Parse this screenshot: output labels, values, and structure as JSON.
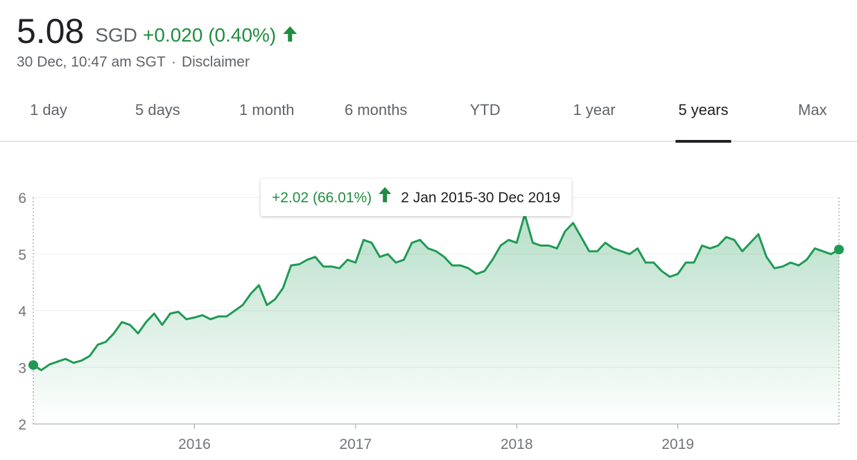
{
  "header": {
    "price": "5.08",
    "currency": "SGD",
    "change": "+0.020 (0.40%)",
    "timestamp": "30 Dec, 10:47 am SGT",
    "separator": "·",
    "disclaimer": "Disclaimer"
  },
  "tabs": [
    "1 day",
    "5 days",
    "1 month",
    "6 months",
    "YTD",
    "1 year",
    "5 years",
    "Max"
  ],
  "active_tab": 6,
  "chart_data": {
    "type": "line",
    "tooltip": {
      "change": "+2.02 (66.01%)",
      "range": "2 Jan 2015-30 Dec 2019"
    },
    "color": "#1f9a55",
    "grid": true,
    "xlim": [
      2015,
      2020
    ],
    "xticks": [
      2016,
      2017,
      2018,
      2019
    ],
    "ylim": [
      2,
      6
    ],
    "yticks": [
      2,
      3,
      4,
      5,
      6
    ],
    "x": [
      2015,
      2015.05,
      2015.1,
      2015.15,
      2015.2,
      2015.25,
      2015.3,
      2015.35,
      2015.4,
      2015.45,
      2015.5,
      2015.55,
      2015.6,
      2015.65,
      2015.7,
      2015.75,
      2015.8,
      2015.85,
      2015.9,
      2015.95,
      2016,
      2016.05,
      2016.1,
      2016.15,
      2016.2,
      2016.25,
      2016.3,
      2016.35,
      2016.4,
      2016.45,
      2016.5,
      2016.55,
      2016.6,
      2016.65,
      2016.7,
      2016.75,
      2016.8,
      2016.85,
      2016.9,
      2016.95,
      2017,
      2017.05,
      2017.1,
      2017.15,
      2017.2,
      2017.25,
      2017.3,
      2017.35,
      2017.4,
      2017.45,
      2017.5,
      2017.55,
      2017.6,
      2017.65,
      2017.7,
      2017.75,
      2017.8,
      2017.85,
      2017.9,
      2017.95,
      2018,
      2018.05,
      2018.1,
      2018.15,
      2018.2,
      2018.25,
      2018.3,
      2018.35,
      2018.4,
      2018.45,
      2018.5,
      2018.55,
      2018.6,
      2018.65,
      2018.7,
      2018.75,
      2018.8,
      2018.85,
      2018.9,
      2018.95,
      2019,
      2019.05,
      2019.1,
      2019.15,
      2019.2,
      2019.25,
      2019.3,
      2019.35,
      2019.4,
      2019.45,
      2019.5,
      2019.55,
      2019.6,
      2019.65,
      2019.7,
      2019.75,
      2019.8,
      2019.85,
      2019.9,
      2019.95,
      2020
    ],
    "values": [
      3.04,
      2.95,
      3.05,
      3.1,
      3.15,
      3.08,
      3.12,
      3.2,
      3.4,
      3.45,
      3.6,
      3.8,
      3.75,
      3.6,
      3.8,
      3.95,
      3.75,
      3.95,
      3.98,
      3.85,
      3.88,
      3.92,
      3.85,
      3.9,
      3.9,
      4.0,
      4.1,
      4.3,
      4.45,
      4.1,
      4.2,
      4.4,
      4.8,
      4.82,
      4.9,
      4.95,
      4.78,
      4.78,
      4.75,
      4.9,
      4.85,
      5.25,
      5.2,
      4.95,
      5.0,
      4.85,
      4.9,
      5.2,
      5.25,
      5.1,
      5.05,
      4.95,
      4.8,
      4.8,
      4.75,
      4.65,
      4.7,
      4.9,
      5.15,
      5.25,
      5.2,
      5.7,
      5.2,
      5.15,
      5.15,
      5.1,
      5.4,
      5.55,
      5.3,
      5.05,
      5.05,
      5.2,
      5.1,
      5.05,
      5.0,
      5.1,
      4.85,
      4.85,
      4.7,
      4.6,
      4.65,
      4.85,
      4.85,
      5.15,
      5.1,
      5.15,
      5.3,
      5.25,
      5.05,
      5.2,
      5.35,
      4.95,
      4.75,
      4.78,
      4.85,
      4.8,
      4.9,
      5.1,
      5.05,
      5.0,
      5.08
    ]
  }
}
